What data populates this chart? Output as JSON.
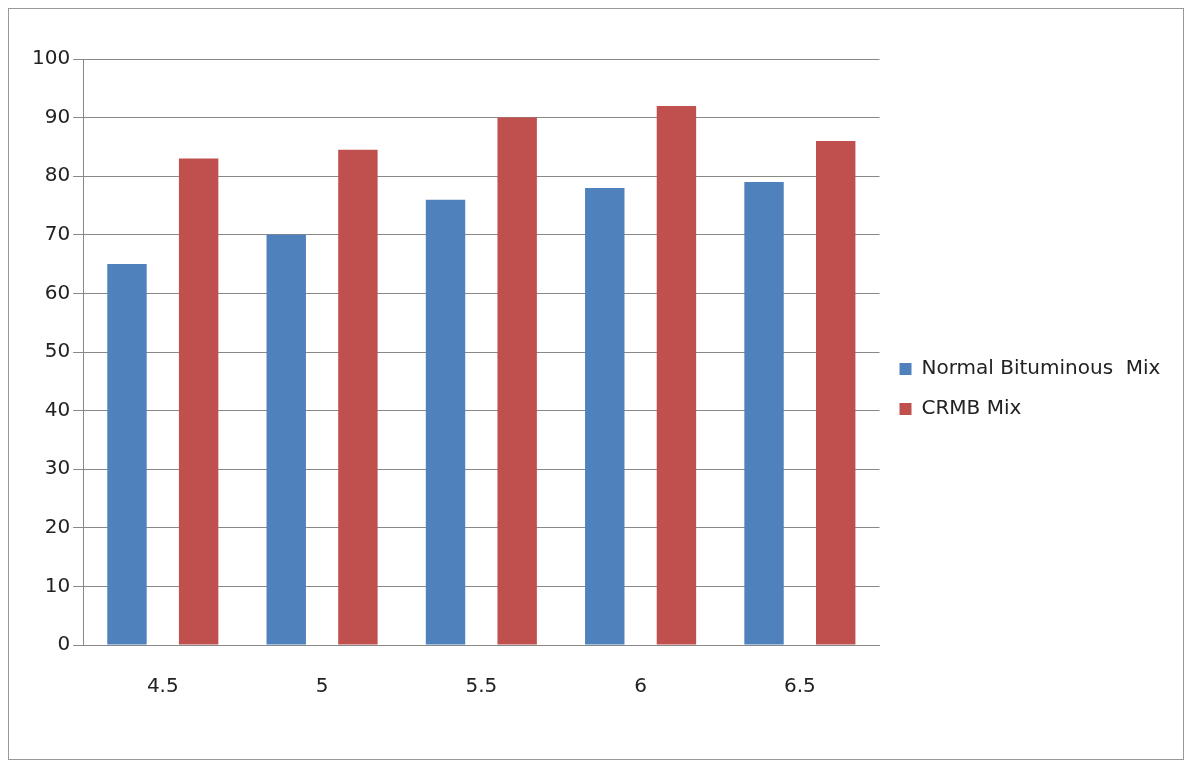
{
  "chart_data": {
    "type": "bar",
    "categories": [
      "4.5",
      "5",
      "5.5",
      "6",
      "6.5"
    ],
    "series": [
      {
        "name": "Normal Bituminous  Mix",
        "color": "#4f81bd",
        "values": [
          65,
          70,
          76,
          78,
          79
        ]
      },
      {
        "name": "CRMB Mix",
        "color": "#c0504d",
        "values": [
          83,
          84.5,
          90,
          92,
          86
        ]
      }
    ],
    "ylim": [
      0,
      100
    ],
    "yticks": [
      0,
      10,
      20,
      30,
      40,
      50,
      60,
      70,
      80,
      90,
      100
    ],
    "grid": "y",
    "legend": "right"
  }
}
